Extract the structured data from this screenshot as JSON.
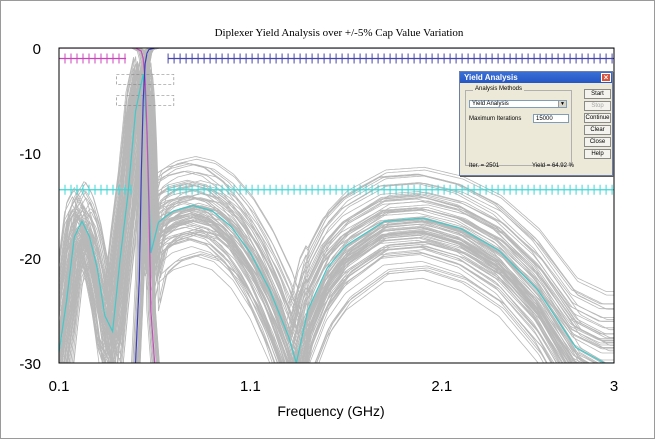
{
  "window": {
    "title": "Diplexer Yield Analysis over +/-5% Cap Value Variation",
    "colors": {
      "background": "#ffffff",
      "grid_border": "#000000"
    }
  },
  "chart_data": {
    "type": "line",
    "title": "Diplexer Yield Analysis over +/-5% Cap Value Variation",
    "xlabel": "Frequency (GHz)",
    "ylabel": "",
    "xlim": [
      0.1,
      3
    ],
    "ylim": [
      -30,
      0
    ],
    "x_ticks": [
      "0.1",
      "1.1",
      "2.1",
      "3"
    ],
    "y_ticks": [
      "0",
      "-10",
      "-20",
      "-30"
    ],
    "monte_carlo_trace_count": 2501,
    "colors": {
      "monte_carlo": "#b8b8b8",
      "reflection_nominal": "#44c8c8",
      "lowpass_nominal": "#c44eb8",
      "highpass_nominal": "#3d3dbb",
      "spec_return_loss": "#40d6d6",
      "spec_lowpass": "#cc44bb",
      "spec_highpass": "#4444aa",
      "spec_stopband": "#7a7a7a"
    },
    "series": [
      {
        "role": "reflection_nominal",
        "x": [
          0.1,
          0.14,
          0.18,
          0.22,
          0.26,
          0.3,
          0.34,
          0.38,
          0.42,
          0.46,
          0.5,
          0.54,
          0.56,
          0.58,
          0.62,
          0.66,
          0.7,
          0.8,
          0.9,
          1.0,
          1.1,
          1.2,
          1.3,
          1.34,
          1.4,
          1.5,
          1.6,
          1.8,
          2.0,
          2.2,
          2.4,
          2.6,
          2.8,
          2.95,
          3.0
        ],
        "y": [
          -29,
          -24,
          -18,
          -16.5,
          -18,
          -21,
          -25.5,
          -27,
          -20,
          -14,
          -6,
          -2.5,
          -8,
          -19.5,
          -16.6,
          -16,
          -15.5,
          -15,
          -15.5,
          -17,
          -19.5,
          -23,
          -27.5,
          -30,
          -25,
          -21,
          -18.8,
          -16.5,
          -16.2,
          -17.2,
          -19.3,
          -23,
          -28.5,
          -30,
          -30
        ]
      },
      {
        "role": "lowpass_nominal",
        "x": [
          0.1,
          0.5,
          0.53,
          0.54,
          0.55,
          0.56,
          0.57,
          0.58,
          0.6
        ],
        "y": [
          0,
          0,
          -0.3,
          -1,
          -3,
          -8,
          -15,
          -25,
          -30
        ]
      },
      {
        "role": "highpass_nominal",
        "x": [
          0.5,
          0.52,
          0.53,
          0.54,
          0.55,
          0.56,
          0.57,
          0.6,
          0.7,
          1.0,
          3.0
        ],
        "y": [
          -30,
          -22,
          -12,
          -5,
          -1.5,
          -0.5,
          -0.15,
          0,
          0,
          0,
          0
        ]
      }
    ],
    "spec_masks": [
      {
        "role": "spec_lowpass",
        "x": [
          0.1,
          0.45
        ],
        "y": -1
      },
      {
        "role": "spec_highpass",
        "x": [
          0.67,
          3.0
        ],
        "y": -1
      },
      {
        "role": "spec_return_loss",
        "x": [
          0.1,
          0.48
        ],
        "y": -13.5
      },
      {
        "role": "spec_return_loss",
        "x": [
          0.67,
          3.0
        ],
        "y": -13.5
      },
      {
        "role": "spec_stopband",
        "x": [
          0.4,
          0.7
        ],
        "y": -3
      },
      {
        "role": "spec_stopband",
        "x": [
          0.4,
          0.7
        ],
        "y": -5
      }
    ]
  },
  "yield_dialog": {
    "title": "Yield Analysis",
    "group_label": "Analysis Methods",
    "method_value": "Yield Analysis",
    "max_iterations_label": "Maximum Iterations",
    "max_iterations_value": "15000",
    "iter_status": "Iter. = 2501",
    "yield_status": "Yield = 64.92 %",
    "buttons": {
      "start": "Start",
      "stop": "Stop",
      "continue": "Continue",
      "clear": "Clear",
      "close": "Close",
      "help": "Help"
    },
    "close_glyph": "×",
    "dropdown_glyph": "▼"
  }
}
